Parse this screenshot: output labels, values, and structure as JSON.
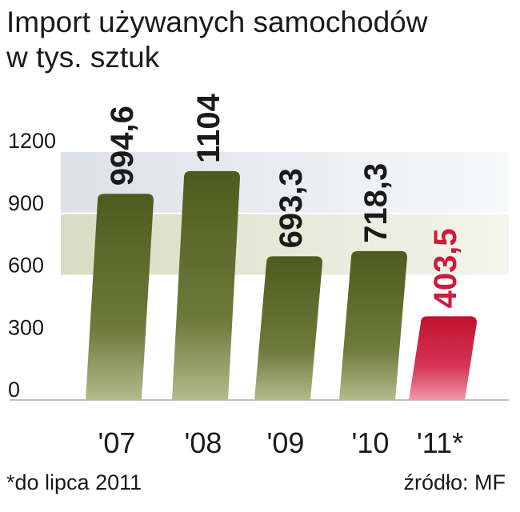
{
  "title_lines": [
    "Import używanych samochodów",
    "w tys. sztuk"
  ],
  "footnote": "*do lipca 2011",
  "source": "źródło: MF",
  "colors": {
    "bar": "#5e6b2a",
    "bar_highlight": "#cc1b3b",
    "value_label": "#1a1a1a",
    "value_label_highlight": "#cc1b3b",
    "plot_band_light": "#e9ebee",
    "plot_band_green": "#dfe3cf"
  },
  "chart_data": {
    "type": "bar",
    "title": "Import używanych samochodów w tys. sztuk",
    "xlabel": "",
    "ylabel": "",
    "categories": [
      "'07",
      "'08",
      "'09",
      "'10",
      "'11*"
    ],
    "values": [
      994.6,
      1104,
      693.3,
      718.3,
      403.5
    ],
    "value_labels": [
      "994,6",
      "1104",
      "693,3",
      "718,3",
      "403,5"
    ],
    "highlight_index": 4,
    "ylim": [
      0,
      1200
    ],
    "yticks": [
      0,
      300,
      600,
      900,
      1200
    ],
    "grid": true,
    "legend": "none"
  }
}
